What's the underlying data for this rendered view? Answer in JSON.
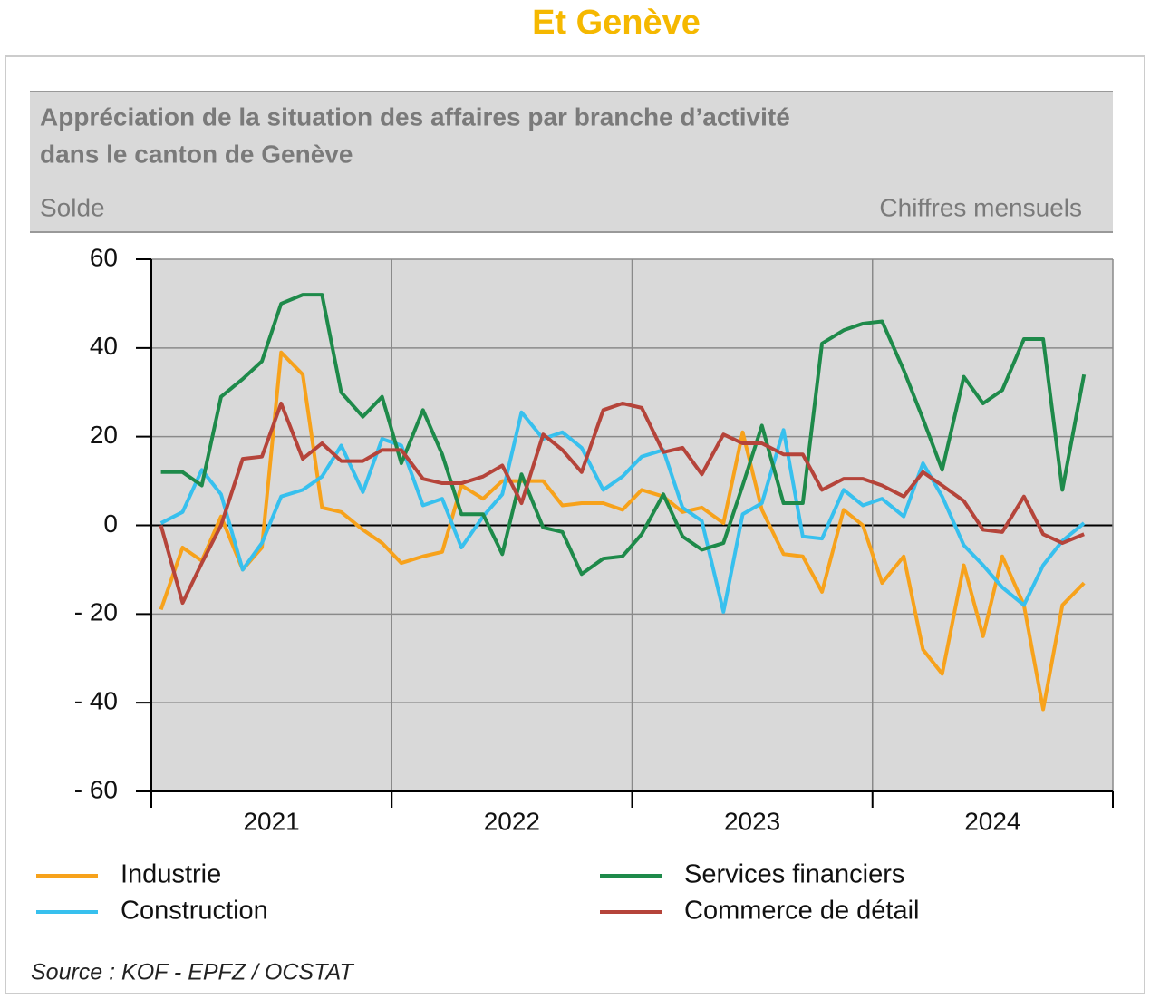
{
  "page_header": "Et Genève",
  "chart_data": {
    "type": "line",
    "title": [
      "Appréciation de la situation des affaires par branche d’activité",
      "dans le canton de Genève"
    ],
    "ylabel": "Solde",
    "subtitle": "Chiffres mensuels",
    "source": "Source : KOF - EPFZ / OCSTAT",
    "x": [
      2021.04,
      2021.13,
      2021.21,
      2021.29,
      2021.38,
      2021.46,
      2021.54,
      2021.63,
      2021.71,
      2021.79,
      2021.88,
      2021.96,
      2022.04,
      2022.13,
      2022.21,
      2022.29,
      2022.38,
      2022.46,
      2022.54,
      2022.63,
      2022.71,
      2022.79,
      2022.88,
      2022.96,
      2023.04,
      2023.13,
      2023.21,
      2023.29,
      2023.38,
      2023.46,
      2023.54,
      2023.63,
      2023.71,
      2023.79,
      2023.88,
      2023.96,
      2024.04,
      2024.13,
      2024.21,
      2024.29,
      2024.38,
      2024.46,
      2024.54,
      2024.63,
      2024.71,
      2024.79,
      2024.88
    ],
    "xlim": [
      2021,
      2025
    ],
    "xticks": [
      {
        "value": 2021.5,
        "label": "2021"
      },
      {
        "value": 2022.5,
        "label": "2022"
      },
      {
        "value": 2023.5,
        "label": "2023"
      },
      {
        "value": 2024.5,
        "label": "2024"
      }
    ],
    "xgrid": [
      2021,
      2022,
      2023,
      2024,
      2025
    ],
    "ylim": [
      -60,
      60
    ],
    "yticks": [
      {
        "value": -60,
        "label": "- 60"
      },
      {
        "value": -40,
        "label": "- 40"
      },
      {
        "value": -20,
        "label": "- 20"
      },
      0,
      20,
      40,
      60
    ],
    "grid": true,
    "series": [
      {
        "name": "Industrie",
        "color": "#f7a21b",
        "values": [
          -19,
          -5,
          -8,
          2,
          -10,
          -5,
          39,
          34,
          4,
          3,
          -1,
          -4,
          -8.5,
          -7,
          -6,
          9,
          6,
          10,
          10,
          10,
          4.5,
          5,
          5,
          3.5,
          8,
          6.5,
          3,
          4,
          0.5,
          21,
          3.5,
          -6.5,
          -7,
          -15,
          3.5,
          0,
          -13,
          -7,
          -28,
          -33.5,
          -9,
          -25,
          -7,
          -18,
          -41.5,
          -18,
          -13
        ]
      },
      {
        "name": "Construction",
        "color": "#37c0ee",
        "values": [
          0.5,
          3,
          12.5,
          7,
          -10,
          -4,
          6.5,
          8,
          11,
          18,
          7.5,
          19.5,
          18,
          4.5,
          6,
          -5,
          2,
          7,
          25.5,
          19.5,
          21,
          17.5,
          8,
          11,
          15.5,
          17,
          4,
          1,
          -19.5,
          2.5,
          5,
          21.5,
          -2.5,
          -3,
          8,
          4.5,
          6,
          2,
          14,
          6.5,
          -4.5,
          -9,
          -14,
          -18,
          -9,
          -3.5,
          0.5
        ]
      },
      {
        "name": "Services financiers",
        "color": "#1e8a4a",
        "values": [
          12,
          12,
          9,
          29,
          33,
          37,
          50,
          52,
          52,
          30,
          24.5,
          29,
          14,
          26,
          16,
          2.5,
          2.5,
          -6.5,
          11.5,
          -0.5,
          -1.5,
          -11,
          -7.5,
          -7,
          -2,
          7,
          -2.5,
          -5.5,
          -4,
          9,
          22.5,
          5,
          5,
          41,
          44,
          45.5,
          46,
          35,
          24,
          12.5,
          33.5,
          27.5,
          30.5,
          42,
          42,
          8,
          34
        ]
      },
      {
        "name": "Commerce de détail",
        "color": "#b5443a",
        "values": [
          0,
          -17.5,
          -8.5,
          0,
          15,
          15.5,
          27.5,
          15,
          18.5,
          14.5,
          14.5,
          17,
          17,
          10.5,
          9.5,
          9.5,
          11,
          13.5,
          5,
          20.5,
          17,
          12,
          26,
          27.5,
          26.5,
          16.5,
          17.5,
          11.5,
          20.5,
          18.5,
          18.5,
          16,
          16,
          8,
          10.5,
          10.5,
          9,
          6.5,
          12,
          9,
          5.5,
          -1,
          -1.5,
          6.5,
          -2,
          -4,
          -2
        ]
      }
    ]
  }
}
